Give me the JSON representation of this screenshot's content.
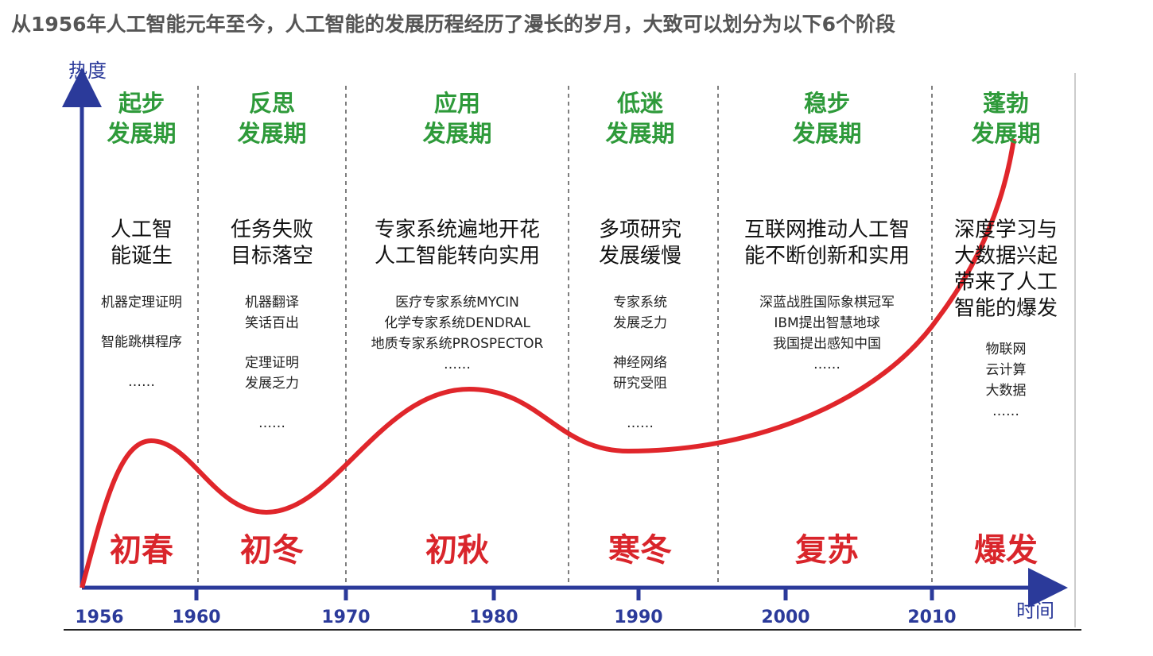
{
  "title": "从1956年人工智能元年至今，人工智能的发展历程经历了漫长的岁月，大致可以划分为以下6个阶段",
  "axes": {
    "y_label": "热度",
    "x_label": "时间",
    "years": [
      "1956",
      "1960",
      "1970",
      "1980",
      "1990",
      "2000",
      "2010"
    ]
  },
  "phases": [
    {
      "name": [
        "起步",
        "发展期"
      ],
      "headline": [
        "人工智",
        "能诞生"
      ],
      "details": [
        [
          "机器定理证明"
        ],
        [
          "智能跳棋程序"
        ],
        [
          "……"
        ]
      ],
      "season": "初春"
    },
    {
      "name": [
        "反思",
        "发展期"
      ],
      "headline": [
        "任务失败",
        "目标落空"
      ],
      "details": [
        [
          "机器翻译",
          "笑话百出"
        ],
        [
          "定理证明",
          "发展乏力"
        ],
        [
          "……"
        ]
      ],
      "season": "初冬"
    },
    {
      "name": [
        "应用",
        "发展期"
      ],
      "headline": [
        "专家系统遍地开花",
        "人工智能转向实用"
      ],
      "details": [
        [
          "医疗专家系统MYCIN",
          "化学专家系统DENDRAL",
          "地质专家系统PROSPECTOR",
          "……"
        ]
      ],
      "season": "初秋"
    },
    {
      "name": [
        "低迷",
        "发展期"
      ],
      "headline": [
        "多项研究",
        "发展缓慢"
      ],
      "details": [
        [
          "专家系统",
          "发展乏力"
        ],
        [
          "神经网络",
          "研究受阻"
        ],
        [
          "……"
        ]
      ],
      "season": "寒冬"
    },
    {
      "name": [
        "稳步",
        "发展期"
      ],
      "headline": [
        "互联网推动人工智",
        "能不断创新和实用"
      ],
      "details": [
        [
          "深蓝战胜国际象棋冠军",
          "IBM提出智慧地球",
          "我国提出感知中国",
          "……"
        ]
      ],
      "season": "复苏"
    },
    {
      "name": [
        "蓬勃",
        "发展期"
      ],
      "headline": [
        "深度学习与",
        "大数据兴起",
        "带来了人工",
        "智能的爆发"
      ],
      "details": [
        [
          "物联网",
          "云计算",
          "大数据",
          "……"
        ]
      ],
      "season": "爆发"
    }
  ]
}
